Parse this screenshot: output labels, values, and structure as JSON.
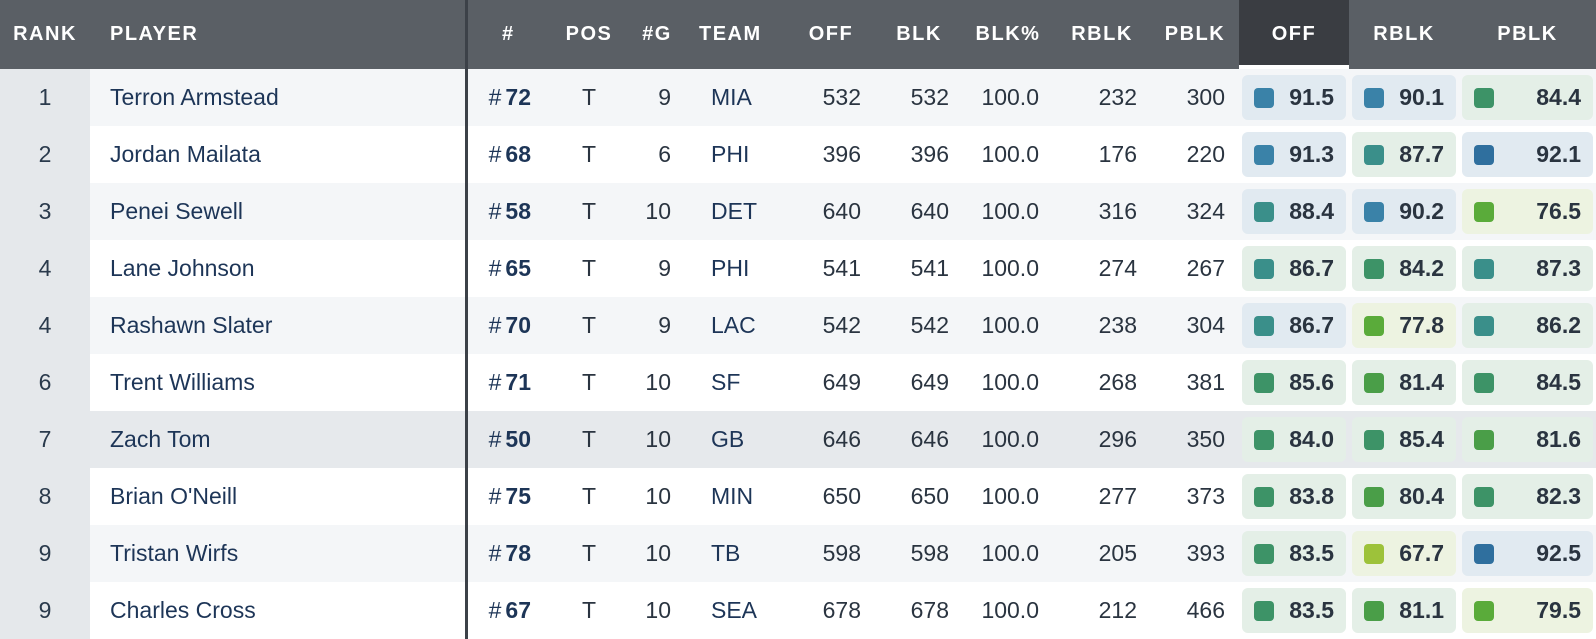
{
  "headers": {
    "rank": "RANK",
    "player": "PLAYER",
    "number": "#",
    "pos": "POS",
    "games": "#G",
    "team": "TEAM",
    "off": "OFF",
    "blk": "BLK",
    "blk_pct": "BLK%",
    "rblk": "RBLK",
    "pblk": "PBLK",
    "grade_off": "OFF",
    "grade_rblk": "RBLK",
    "grade_pblk": "PBLK"
  },
  "number_prefix": "#",
  "grade_colors": {
    "blue": "#2f6f9e",
    "steel-blue": "#3a82a8",
    "teal": "#3a8f8a",
    "sea-green": "#3d9367",
    "green": "#4a9e48",
    "bright-green": "#5aab3a",
    "lime": "#9dc23a"
  },
  "rows": [
    {
      "rank": "1",
      "player": "Terron Armstead",
      "number": "72",
      "pos": "T",
      "games": "9",
      "team": "MIA",
      "off": "532",
      "blk": "532",
      "blk_pct": "100.0",
      "rblk": "232",
      "pblk": "300",
      "grades": [
        {
          "value": "91.5",
          "color": "steel-blue",
          "bg": "pale-blue"
        },
        {
          "value": "90.1",
          "color": "steel-blue",
          "bg": "pale-blue"
        },
        {
          "value": "84.4",
          "color": "sea-green",
          "bg": "pale-green"
        }
      ]
    },
    {
      "rank": "2",
      "player": "Jordan Mailata",
      "number": "68",
      "pos": "T",
      "games": "6",
      "team": "PHI",
      "off": "396",
      "blk": "396",
      "blk_pct": "100.0",
      "rblk": "176",
      "pblk": "220",
      "grades": [
        {
          "value": "91.3",
          "color": "steel-blue",
          "bg": "pale-blue"
        },
        {
          "value": "87.7",
          "color": "teal",
          "bg": "pale-green"
        },
        {
          "value": "92.1",
          "color": "blue",
          "bg": "pale-blue"
        }
      ]
    },
    {
      "rank": "3",
      "player": "Penei Sewell",
      "number": "58",
      "pos": "T",
      "games": "10",
      "team": "DET",
      "off": "640",
      "blk": "640",
      "blk_pct": "100.0",
      "rblk": "316",
      "pblk": "324",
      "grades": [
        {
          "value": "88.4",
          "color": "teal",
          "bg": "pale-blue"
        },
        {
          "value": "90.2",
          "color": "steel-blue",
          "bg": "pale-blue"
        },
        {
          "value": "76.5",
          "color": "bright-green",
          "bg": "pale-lime"
        }
      ]
    },
    {
      "rank": "4",
      "player": "Lane Johnson",
      "number": "65",
      "pos": "T",
      "games": "9",
      "team": "PHI",
      "off": "541",
      "blk": "541",
      "blk_pct": "100.0",
      "rblk": "274",
      "pblk": "267",
      "grades": [
        {
          "value": "86.7",
          "color": "teal",
          "bg": "pale-green"
        },
        {
          "value": "84.2",
          "color": "sea-green",
          "bg": "pale-green"
        },
        {
          "value": "87.3",
          "color": "teal",
          "bg": "pale-green"
        }
      ]
    },
    {
      "rank": "4",
      "player": "Rashawn Slater",
      "number": "70",
      "pos": "T",
      "games": "9",
      "team": "LAC",
      "off": "542",
      "blk": "542",
      "blk_pct": "100.0",
      "rblk": "238",
      "pblk": "304",
      "grades": [
        {
          "value": "86.7",
          "color": "teal",
          "bg": "pale-blue"
        },
        {
          "value": "77.8",
          "color": "bright-green",
          "bg": "pale-lime"
        },
        {
          "value": "86.2",
          "color": "teal",
          "bg": "pale-green"
        }
      ]
    },
    {
      "rank": "6",
      "player": "Trent Williams",
      "number": "71",
      "pos": "T",
      "games": "10",
      "team": "SF",
      "off": "649",
      "blk": "649",
      "blk_pct": "100.0",
      "rblk": "268",
      "pblk": "381",
      "grades": [
        {
          "value": "85.6",
          "color": "sea-green",
          "bg": "pale-green"
        },
        {
          "value": "81.4",
          "color": "green",
          "bg": "pale-green"
        },
        {
          "value": "84.5",
          "color": "sea-green",
          "bg": "pale-green"
        }
      ]
    },
    {
      "rank": "7",
      "player": "Zach Tom",
      "number": "50",
      "pos": "T",
      "games": "10",
      "team": "GB",
      "off": "646",
      "blk": "646",
      "blk_pct": "100.0",
      "rblk": "296",
      "pblk": "350",
      "grades": [
        {
          "value": "84.0",
          "color": "sea-green",
          "bg": "pale-green"
        },
        {
          "value": "85.4",
          "color": "sea-green",
          "bg": "pale-green"
        },
        {
          "value": "81.6",
          "color": "green",
          "bg": "pale-green"
        }
      ]
    },
    {
      "rank": "8",
      "player": "Brian O'Neill",
      "number": "75",
      "pos": "T",
      "games": "10",
      "team": "MIN",
      "off": "650",
      "blk": "650",
      "blk_pct": "100.0",
      "rblk": "277",
      "pblk": "373",
      "grades": [
        {
          "value": "83.8",
          "color": "sea-green",
          "bg": "pale-green"
        },
        {
          "value": "80.4",
          "color": "green",
          "bg": "pale-green"
        },
        {
          "value": "82.3",
          "color": "sea-green",
          "bg": "pale-green"
        }
      ]
    },
    {
      "rank": "9",
      "player": "Tristan Wirfs",
      "number": "78",
      "pos": "T",
      "games": "10",
      "team": "TB",
      "off": "598",
      "blk": "598",
      "blk_pct": "100.0",
      "rblk": "205",
      "pblk": "393",
      "grades": [
        {
          "value": "83.5",
          "color": "sea-green",
          "bg": "pale-green"
        },
        {
          "value": "67.7",
          "color": "lime",
          "bg": "pale-lime"
        },
        {
          "value": "92.5",
          "color": "blue",
          "bg": "pale-blue"
        }
      ]
    },
    {
      "rank": "9",
      "player": "Charles Cross",
      "number": "67",
      "pos": "T",
      "games": "10",
      "team": "SEA",
      "off": "678",
      "blk": "678",
      "blk_pct": "100.0",
      "rblk": "212",
      "pblk": "466",
      "grades": [
        {
          "value": "83.5",
          "color": "sea-green",
          "bg": "pale-green"
        },
        {
          "value": "81.1",
          "color": "green",
          "bg": "pale-green"
        },
        {
          "value": "79.5",
          "color": "bright-green",
          "bg": "pale-lime"
        }
      ]
    }
  ],
  "highlighted_row_index": 6
}
